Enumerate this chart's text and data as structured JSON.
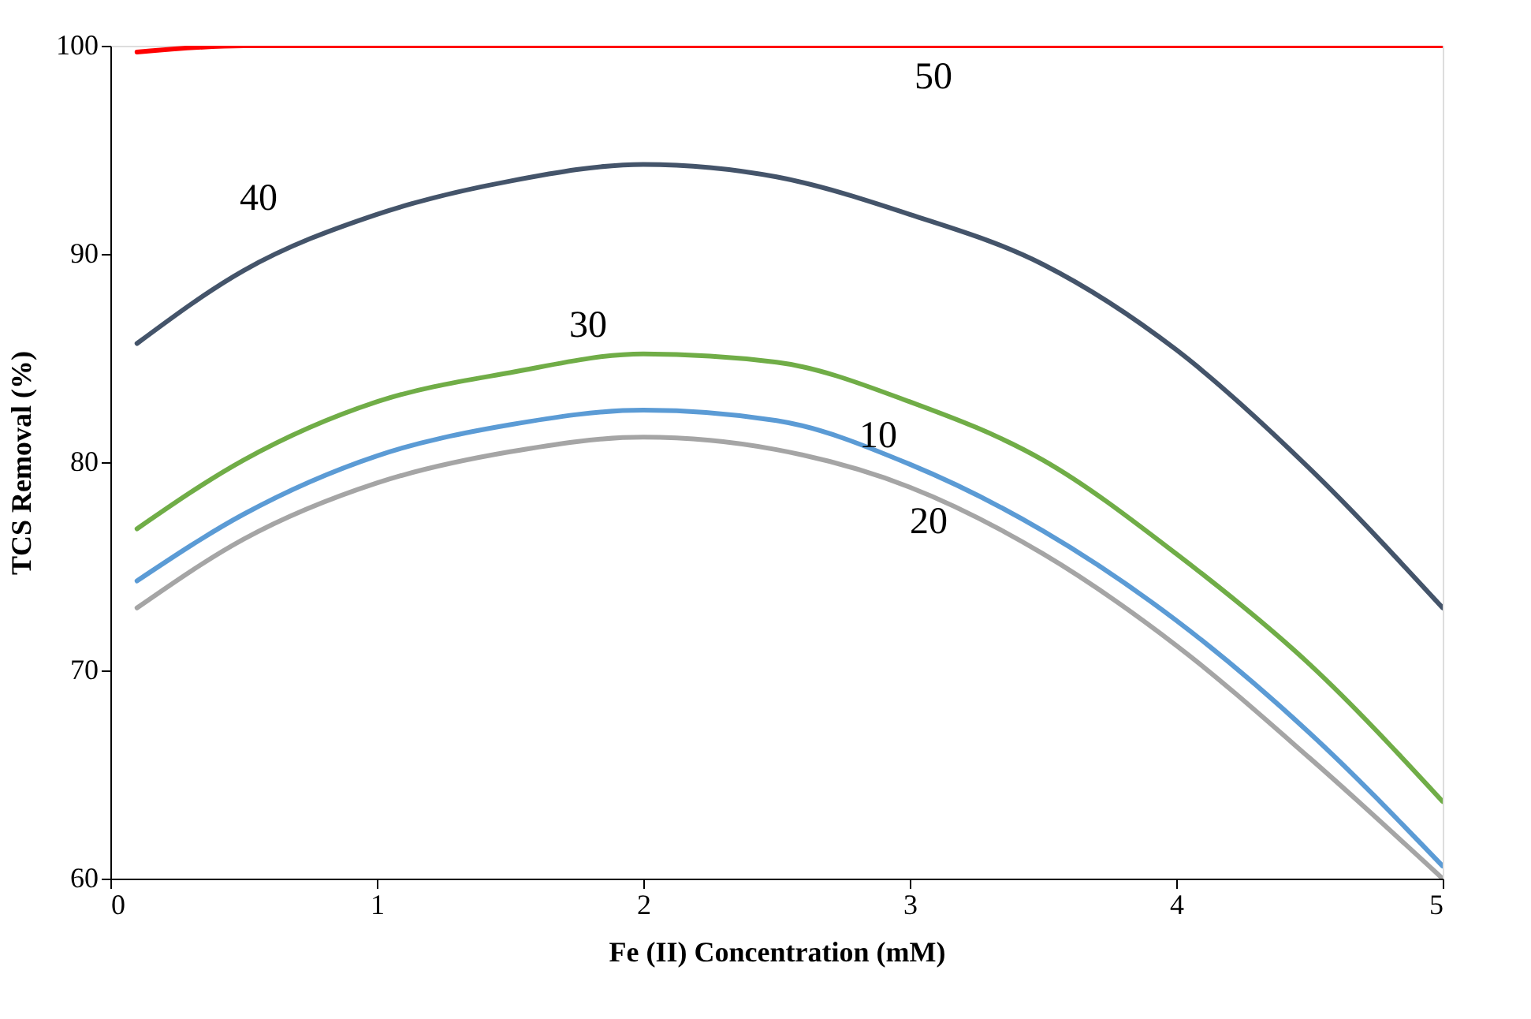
{
  "chart_data": {
    "type": "line",
    "xlabel": "Fe (II) Concentration (mM)",
    "ylabel": "TCS Removal (%)",
    "x": [
      0.1,
      0.5,
      1,
      1.5,
      2,
      2.5,
      3,
      3.5,
      4,
      4.5,
      5
    ],
    "series": [
      {
        "name": "10",
        "color": "#5b9bd5",
        "values": [
          74.3,
          77.5,
          80.3,
          81.8,
          82.5,
          82.0,
          79.9,
          76.7,
          72.4,
          67.0,
          60.6
        ]
      },
      {
        "name": "20",
        "color": "#a5a5a5",
        "values": [
          73.0,
          76.3,
          79.0,
          80.5,
          81.2,
          80.6,
          78.8,
          75.6,
          71.2,
          65.8,
          60.0
        ]
      },
      {
        "name": "30",
        "color": "#70ad47",
        "values": [
          76.8,
          80.1,
          82.9,
          84.3,
          85.2,
          84.8,
          82.9,
          80.1,
          75.6,
          70.3,
          63.7
        ]
      },
      {
        "name": "40",
        "color": "#44546a",
        "values": [
          85.7,
          89.2,
          91.9,
          93.5,
          94.3,
          93.7,
          91.9,
          89.5,
          85.4,
          79.7,
          73.0
        ]
      },
      {
        "name": "50",
        "color": "#ff0000",
        "values": [
          99.7,
          100,
          100,
          100,
          100,
          100,
          100,
          100,
          100,
          100,
          100
        ]
      }
    ],
    "xlim": [
      0,
      5
    ],
    "xticks": [
      0,
      1,
      2,
      3,
      4,
      5
    ],
    "ylim": [
      60,
      100
    ],
    "yticks": [
      60,
      70,
      80,
      90,
      100
    ],
    "grid": false,
    "legend": false,
    "marker": "none",
    "line_style": "solid"
  }
}
